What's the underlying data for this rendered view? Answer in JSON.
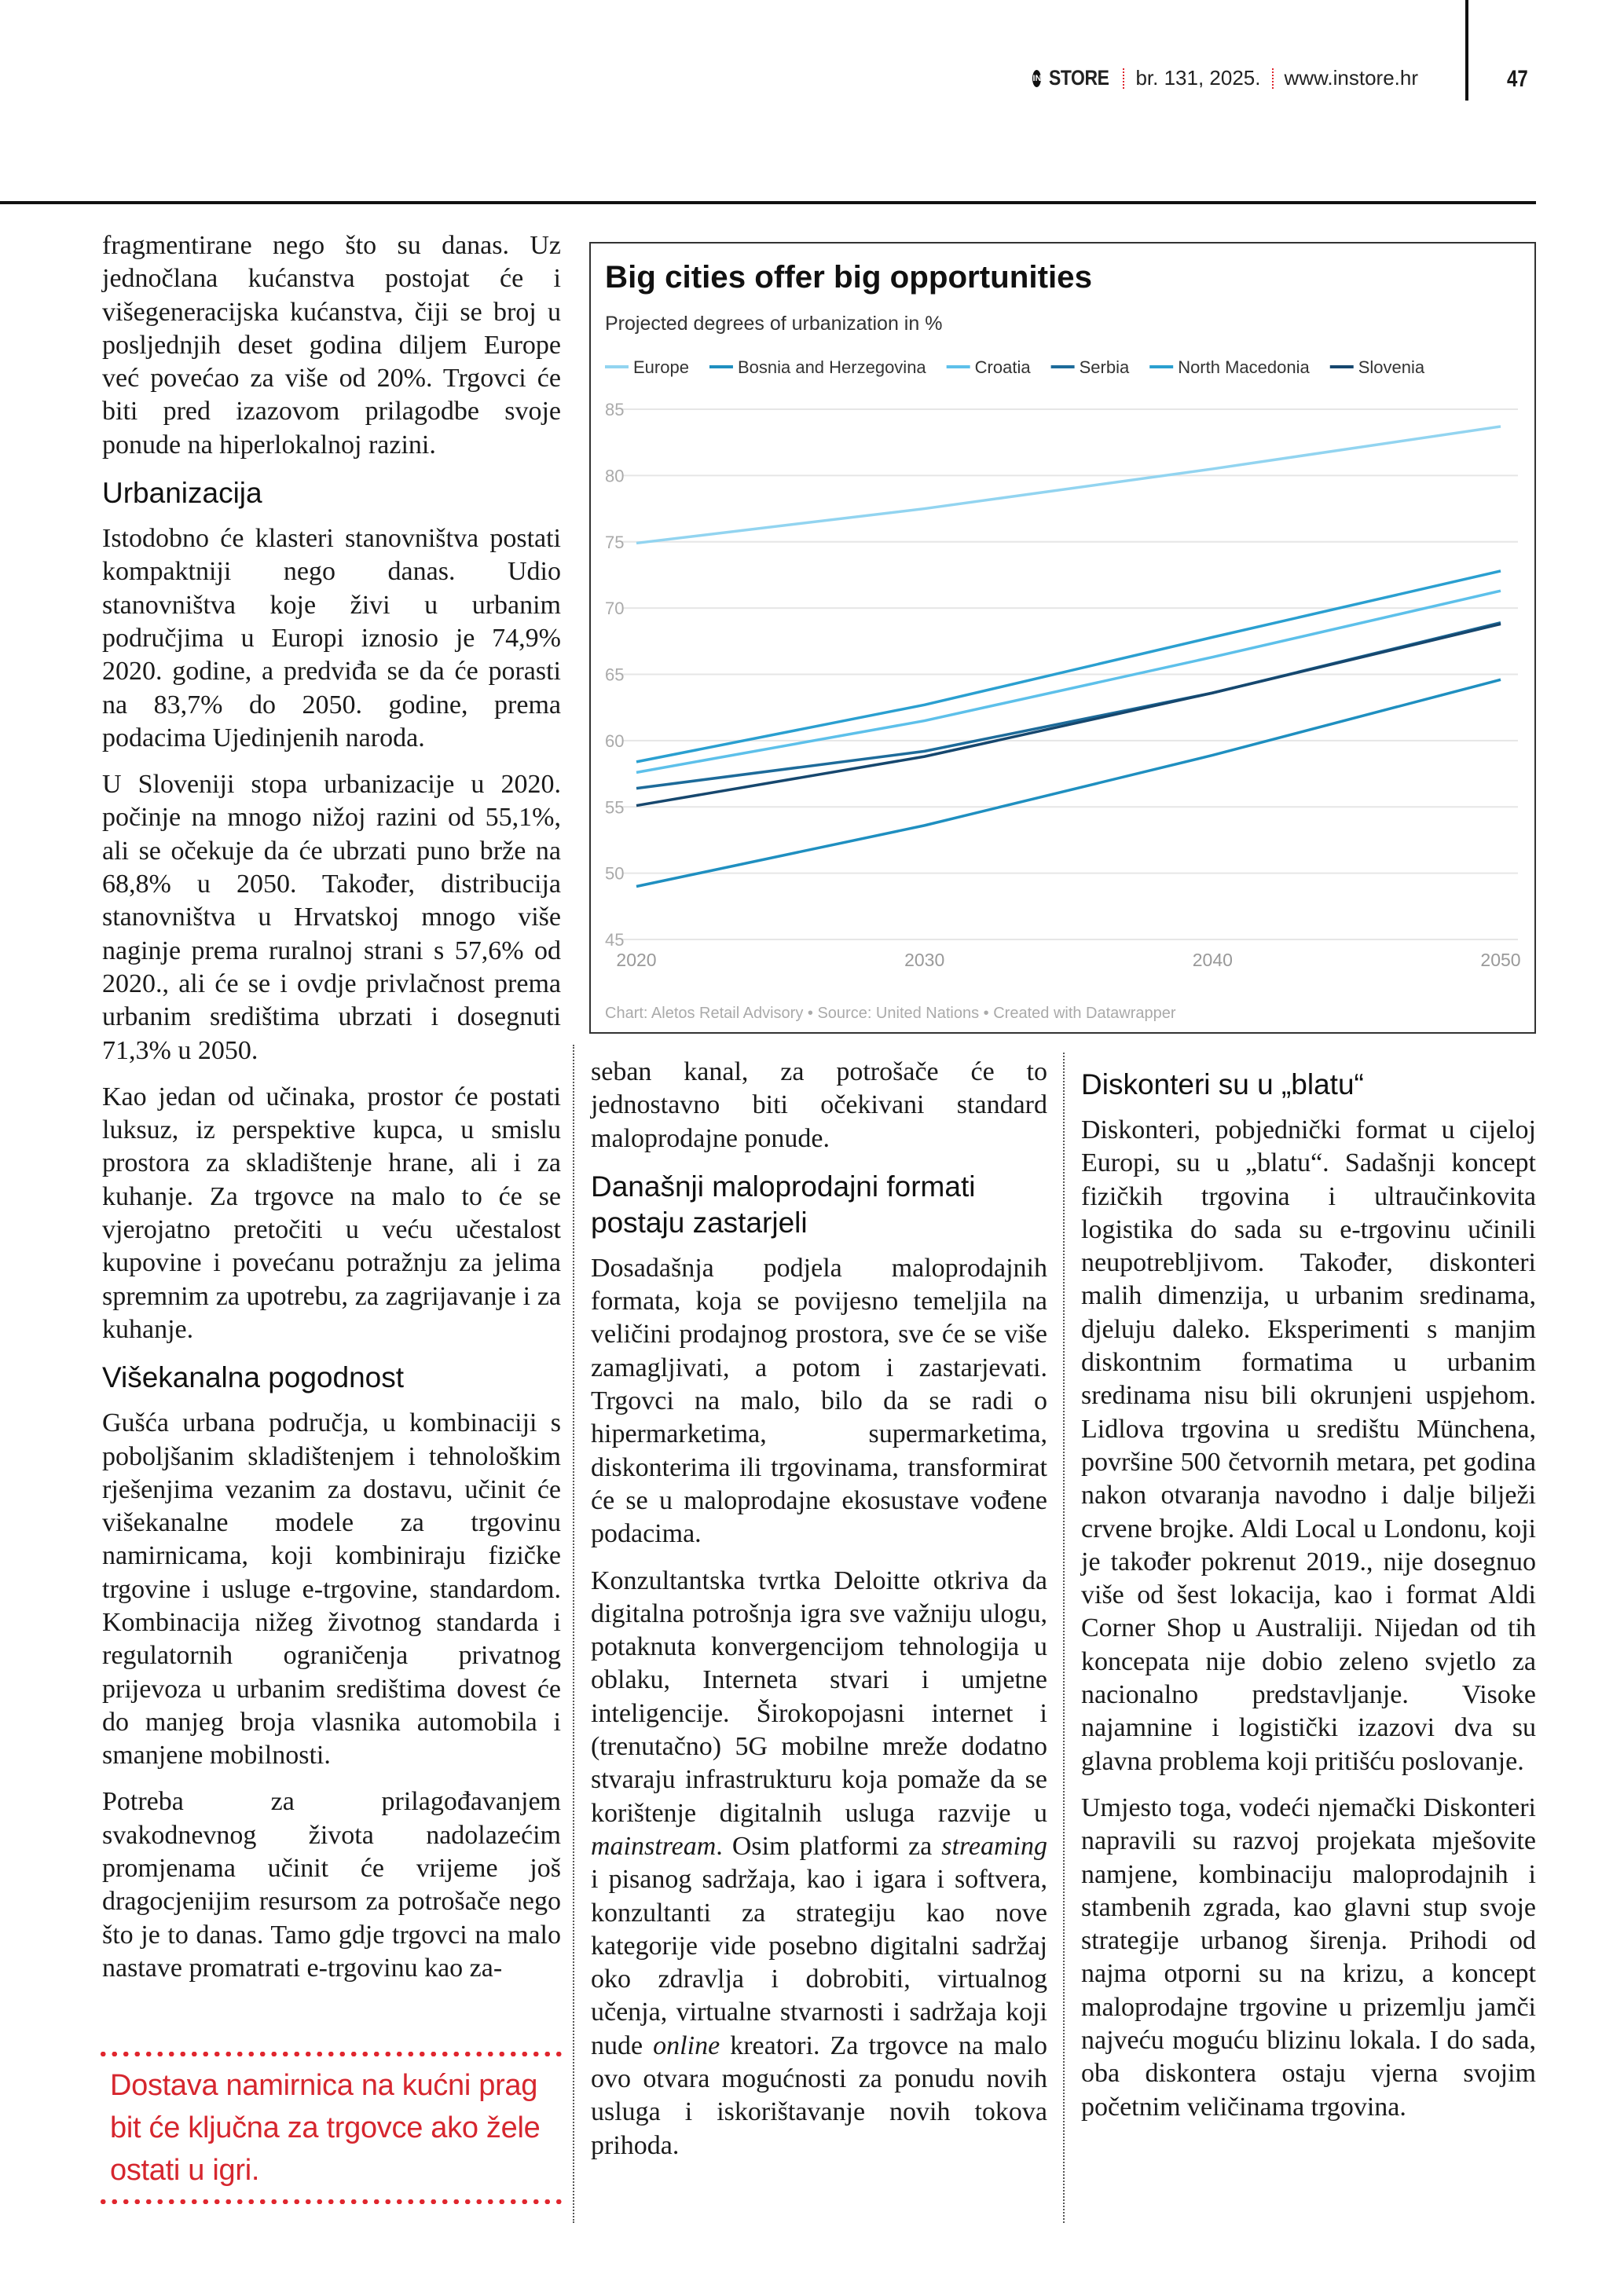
{
  "header": {
    "logo_mark": "IN",
    "logo_text": "STORE",
    "issue": "br. 131, 2025.",
    "website": "www.instore.hr",
    "page_number": "47"
  },
  "columns": {
    "col1": {
      "p1": "fragmentirane nego što su danas. Uz jednočlana kućanstva postojat će i višegeneracijska kućanstva, čiji se broj u posljednjih deset godina diljem Europe već povećao za više od 20%. Trgovci će biti pred izazovom prilagodbe svoje ponude na hiperlokalnoj razini.",
      "h1": "Urbanizacija",
      "p2": "Istodobno će klasteri stanovništva postati kompaktniji nego danas. Udio stanovništva koje živi u urbanim područjima u Europi iznosio je 74,9% 2020. godine, a predviđa se da će porasti na 83,7% do 2050. godine, prema podacima Ujedinjenih naroda.",
      "p3": "U Sloveniji stopa urbanizacije u 2020. počinje na mnogo nižoj razini od 55,1%, ali se očekuje da će ubrzati puno brže na 68,8% u 2050. Također, distribucija stanovništva u Hrvatskoj mnogo više naginje prema ruralnoj strani s 57,6% od 2020., ali će se i ovdje privlačnost prema urbanim središtima ubrzati i dosegnuti 71,3% u 2050.",
      "p4": "Kao jedan od učinaka, prostor će postati luksuz, iz perspektive kupca, u smislu prostora za skladištenje hrane, ali i za kuhanje. Za trgovce na malo to će se vjerojatno pretočiti u veću učestalost kupovine i povećanu potražnju za jelima spremnim za upotrebu, za zagrijavanje i za kuhanje.",
      "h2": "Višekanalna pogodnost",
      "p5": "Gušća urbana područja, u kombinaciji s poboljšanim skladištenjem i tehnološkim rješenjima vezanim za dostavu, učinit će višekanalne modele za trgovinu namirnicama, koji kombiniraju fizičke trgovine i usluge e-trgovine, standardom. Kombinacija nižeg životnog standarda i regulatornih ograničenja privatnog prijevoza u urbanim središtima dovest će do manjeg broja vlasnika automobila i smanjene mobilnosti.",
      "p6": "Potreba za prilagođavanjem svakodnevnog života nadolazećim promjenama učinit će vrijeme još dragocjenijim resursom za potrošače nego što je to danas. Tamo gdje trgovci na malo nastave promatrati e-trgovinu kao za-"
    },
    "col2": {
      "p1": "seban kanal, za potrošače će to jednostavno biti očekivani standard maloprodajne ponude.",
      "h1": "Današnji maloprodajni formati postaju zastarjeli",
      "p2": "Dosadašnja podjela maloprodajnih formata, koja se povijesno temeljila na veličini prodajnog prostora, sve će se više zamagljivati, a potom i zastarjevati. Trgovci na malo, bilo da se radi o hipermarketima, supermarketima, diskonterima ili trgovinama, transformirat će se u maloprodajne ekosustave vođene podacima.",
      "p3_segments": [
        {
          "text": "Konzultantska tvrtka Deloitte otkriva da digitalna potrošnja igra sve važniju ulogu, potaknuta konvergencijom tehnologija u oblaku, Interneta stvari i umjetne inteligencije. Širokopojasni internet i (trenutačno) 5G mobilne mreže dodatno stvaraju infrastrukturu koja pomaže da se korištenje digitalnih usluga razvije u ",
          "italic": false
        },
        {
          "text": "mainstream",
          "italic": true
        },
        {
          "text": ". Osim platformi za ",
          "italic": false
        },
        {
          "text": "streaming",
          "italic": true
        },
        {
          "text": " i pisanog sadržaja, kao i igara i softvera, konzultanti za strategiju kao nove kategorije vide posebno digitalni sadržaj oko zdravlja i dobrobiti, virtualnog učenja, virtualne stvarnosti i sadržaja koji nude ",
          "italic": false
        },
        {
          "text": "online",
          "italic": true
        },
        {
          "text": " kreatori. Za trgovce na malo ovo otvara mogućnosti za ponudu novih usluga i iskorištavanje novih tokova prihoda.",
          "italic": false
        }
      ]
    },
    "col3": {
      "h1": "Diskonteri su u „blatu“",
      "p1": "Diskonteri, pobjednički format u cijeloj Europi, su u „blatu“. Sadašnji koncept fizičkih trgovina i ultraučinkovita logistika do sada su e-trgovinu učinili neupotrebljivom. Također, diskonteri malih dimenzija, u urbanim sredinama, djeluju daleko. Eksperimenti s manjim diskontnim formatima u urbanim sredinama nisu bili okrunjeni uspjehom. Lidlova trgovina u središtu Münchena, površine 500 četvornih metara, pet godina nakon otvaranja navodno i dalje bilježi crvene brojke. Aldi Local u Londonu, koji je također pokrenut 2019., nije dosegnuo više od šest lokacija, kao i format Aldi Corner Shop u Australiji. Nijedan od tih koncepata nije dobio zeleno svjetlo za nacionalno predstavljanje. Visoke najamnine i logistički izazovi dva su glavna problema koji pritišću poslovanje.",
      "p2": "Umjesto toga, vodeći njemački Diskonteri napravili su razvoj projekata mješovite namjene, kombinaciju maloprodajnih i stambenih zgrada, kao glavni stup svoje strategije urbanog širenja. Prihodi od najma otporni su na krizu, a koncept maloprodajne trgovine u prizemlju jamči najveću moguću blizinu lokala. I do sada, oba diskontera ostaju vjerna svojim početnim veličinama trgovina."
    }
  },
  "pull_quote": {
    "text": "Dostava namirnica na kućni prag bit će ključna za trgovce ako žele ostati u igri.",
    "color": "#d6262e"
  },
  "chart_data": {
    "type": "line",
    "title": "Big cities offer big opportunities",
    "subtitle": "Projected degrees of urbanization in %",
    "footer": "Chart: Aletos Retail Advisory • Source: United Nations • Created with Datawrapper",
    "x": [
      2020,
      2030,
      2040,
      2050
    ],
    "x_ticks": [
      "2020",
      "2030",
      "2040",
      "2050"
    ],
    "y_ticks": [
      "85",
      "80",
      "75",
      "70",
      "65",
      "60",
      "55",
      "50",
      "45"
    ],
    "ylim": [
      45,
      85
    ],
    "grid": true,
    "legend_placement": "top",
    "series": [
      {
        "name": "Europe",
        "color": "#92d4f0",
        "values": [
          74.9,
          77.5,
          80.5,
          83.7
        ]
      },
      {
        "name": "Bosnia and Herzegovina",
        "color": "#1f8fc0",
        "values": [
          49.0,
          53.6,
          58.9,
          64.6
        ]
      },
      {
        "name": "Croatia",
        "color": "#5dc0ea",
        "values": [
          57.6,
          61.5,
          66.3,
          71.3
        ]
      },
      {
        "name": "Serbia",
        "color": "#1d6b9a",
        "values": [
          56.4,
          59.2,
          63.6,
          68.9
        ]
      },
      {
        "name": "North Macedonia",
        "color": "#2a9fd0",
        "values": [
          58.4,
          62.7,
          67.8,
          72.8
        ]
      },
      {
        "name": "Slovenia",
        "color": "#16476e",
        "values": [
          55.1,
          58.8,
          63.6,
          68.8
        ]
      }
    ]
  }
}
